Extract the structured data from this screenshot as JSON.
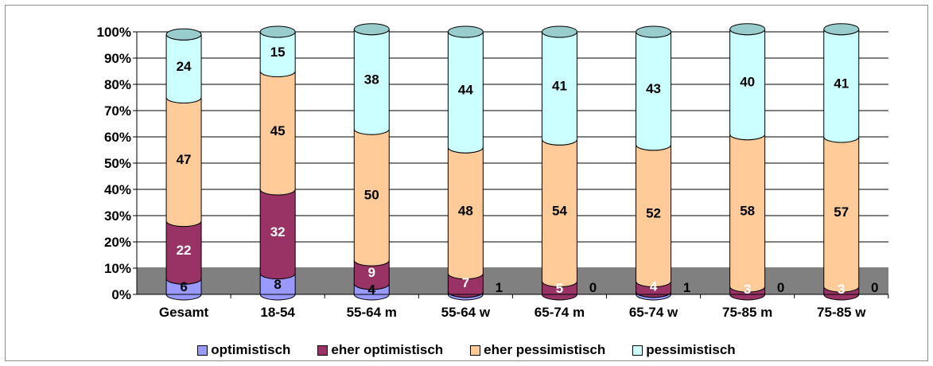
{
  "chart_data": {
    "type": "bar",
    "stacked": true,
    "style": "3d-cylinder",
    "categories": [
      "Gesamt",
      "18-54",
      "55-64 m",
      "55-64 w",
      "65-74 m",
      "65-74 w",
      "75-85 m",
      "75-85 w"
    ],
    "series": [
      {
        "name": "optimistisch",
        "values": [
          6,
          8,
          4,
          1,
          0,
          1,
          0,
          0
        ],
        "labels": [
          "6",
          "8",
          "4",
          "1",
          "0",
          "1",
          "0",
          "0"
        ],
        "color": "#9999ff"
      },
      {
        "name": "eher optimistisch",
        "values": [
          22,
          32,
          9,
          7,
          5,
          4,
          3,
          3
        ],
        "labels": [
          "22",
          "32",
          "9",
          "7",
          "5",
          "4",
          "3",
          "3"
        ],
        "color": "#993366"
      },
      {
        "name": "eher pessimistisch",
        "values": [
          47,
          45,
          50,
          48,
          54,
          52,
          58,
          57
        ],
        "labels": [
          "47",
          "45",
          "50",
          "48",
          "54",
          "52",
          "58",
          "57"
        ],
        "color": "#ffcc99"
      },
      {
        "name": "pessimistisch",
        "values": [
          24,
          15,
          38,
          44,
          41,
          43,
          40,
          41
        ],
        "labels": [
          "24",
          "15",
          "38",
          "44",
          "41",
          "43",
          "40",
          "41"
        ],
        "color": "#ccffff"
      }
    ],
    "y_ticks": [
      "0%",
      "10%",
      "20%",
      "30%",
      "40%",
      "50%",
      "60%",
      "70%",
      "80%",
      "90%",
      "100%"
    ],
    "ylim": [
      0,
      100
    ],
    "y_format": "percent",
    "floor_color": "#808080",
    "top_cap_color": "#99cccc",
    "grid": true,
    "legend_position": "bottom"
  }
}
